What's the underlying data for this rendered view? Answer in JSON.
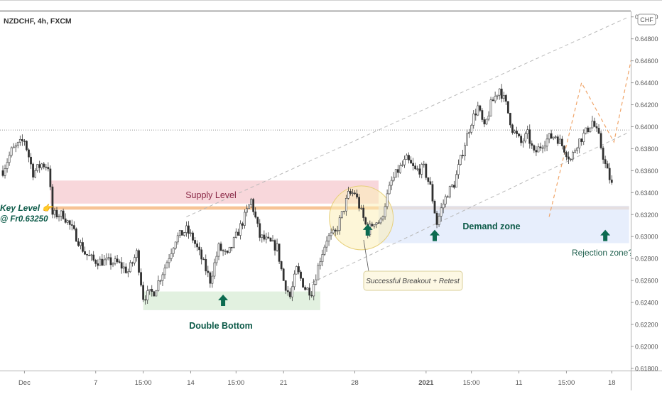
{
  "chart_data": {
    "type": "candlestick",
    "title": "NZDCHF, 4h, FXCM",
    "currency_badge": "CHF",
    "y_axis": {
      "ylim": [
        0.6178,
        0.6505
      ],
      "ticks": [
        "0.65000",
        "0.64800",
        "0.64600",
        "0.64400",
        "0.64200",
        "0.64000",
        "0.63800",
        "0.63600",
        "0.63400",
        "0.63200",
        "0.63000",
        "0.62800",
        "0.62600",
        "0.62400",
        "0.62200",
        "0.62000",
        "0.61800"
      ],
      "tick_values": [
        0.65,
        0.648,
        0.646,
        0.644,
        0.642,
        0.64,
        0.638,
        0.636,
        0.634,
        0.632,
        0.63,
        0.628,
        0.626,
        0.624,
        0.622,
        0.62,
        0.618
      ]
    },
    "x_axis": {
      "ticks": [
        "Dec",
        "7",
        "15:00",
        "14",
        "15:00",
        "21",
        "28",
        "2021",
        "15:00",
        "11",
        "15:00",
        "18"
      ],
      "tick_bars": [
        10,
        43,
        65,
        87,
        108,
        130,
        163,
        196,
        217,
        239,
        261,
        282
      ]
    },
    "reference_line": 0.6397,
    "zones": [
      {
        "name": "Supply Level",
        "from_bar": 22,
        "to_bar": 174,
        "low": 0.633,
        "high": 0.6351,
        "color": "#f6c9cf"
      },
      {
        "name": "Key Level",
        "from_bar": 22,
        "to_bar": 290,
        "low": 0.63245,
        "high": 0.63275,
        "color": "#f7c08f"
      },
      {
        "name": "Demand zone",
        "from_bar": 174,
        "to_bar": 290,
        "low": 0.6294,
        "high": 0.6328,
        "color": "#dfe8fb"
      },
      {
        "name": "Double Bottom",
        "from_bar": 65,
        "to_bar": 147,
        "low": 0.6233,
        "high": 0.625,
        "color": "#d8ecd6"
      }
    ],
    "labels": {
      "supply": "Supply Level",
      "key_level_line1": "Key Level 👉",
      "key_level_line2": "@ Fr0.63250",
      "demand": "Demand zone",
      "double_bottom": "Double Bottom",
      "breakout": "Successful Breakout + Retest",
      "rejection": "Rejection zone?"
    },
    "arrows": [
      {
        "bar": 102,
        "price": 0.6242
      },
      {
        "bar": 169,
        "price": 0.6306
      },
      {
        "bar": 200,
        "price": 0.6301
      },
      {
        "bar": 279,
        "price": 0.6301
      }
    ],
    "channel_lines": [
      {
        "from": [
          143,
          0.6258
        ],
        "to": [
          290,
          0.6395
        ]
      },
      {
        "from": [
          85,
          0.6318
        ],
        "to": [
          290,
          0.65
        ]
      }
    ],
    "projection": [
      [
        253,
        0.6318
      ],
      [
        268,
        0.644
      ],
      [
        283,
        0.6386
      ],
      [
        293,
        0.648
      ]
    ],
    "highlight_circle": {
      "bar": 166,
      "price": 0.6317
    },
    "anchors": [
      [
        0,
        0.636
      ],
      [
        4,
        0.6378
      ],
      [
        10,
        0.6388
      ],
      [
        14,
        0.6358
      ],
      [
        18,
        0.6366
      ],
      [
        21,
        0.6364
      ],
      [
        23,
        0.632
      ],
      [
        28,
        0.632
      ],
      [
        34,
        0.63
      ],
      [
        38,
        0.6285
      ],
      [
        42,
        0.6278
      ],
      [
        48,
        0.6277
      ],
      [
        53,
        0.6276
      ],
      [
        58,
        0.6268
      ],
      [
        62,
        0.6285
      ],
      [
        65,
        0.6245
      ],
      [
        70,
        0.625
      ],
      [
        75,
        0.6272
      ],
      [
        80,
        0.6298
      ],
      [
        85,
        0.6306
      ],
      [
        88,
        0.6298
      ],
      [
        92,
        0.628
      ],
      [
        96,
        0.626
      ],
      [
        100,
        0.629
      ],
      [
        104,
        0.6282
      ],
      [
        108,
        0.63
      ],
      [
        112,
        0.6318
      ],
      [
        115,
        0.6333
      ],
      [
        119,
        0.63
      ],
      [
        123,
        0.6295
      ],
      [
        127,
        0.629
      ],
      [
        130,
        0.626
      ],
      [
        133,
        0.6245
      ],
      [
        136,
        0.627
      ],
      [
        140,
        0.6253
      ],
      [
        143,
        0.625
      ],
      [
        147,
        0.628
      ],
      [
        150,
        0.6298
      ],
      [
        154,
        0.6303
      ],
      [
        157,
        0.632
      ],
      [
        160,
        0.6338
      ],
      [
        163,
        0.634
      ],
      [
        166,
        0.6322
      ],
      [
        169,
        0.6305
      ],
      [
        172,
        0.6314
      ],
      [
        175,
        0.6313
      ],
      [
        177,
        0.633
      ],
      [
        180,
        0.635
      ],
      [
        183,
        0.636
      ],
      [
        187,
        0.637
      ],
      [
        191,
        0.636
      ],
      [
        195,
        0.6362
      ],
      [
        198,
        0.6345
      ],
      [
        201,
        0.6312
      ],
      [
        203,
        0.6325
      ],
      [
        206,
        0.634
      ],
      [
        209,
        0.6348
      ],
      [
        212,
        0.637
      ],
      [
        214,
        0.6385
      ],
      [
        217,
        0.6405
      ],
      [
        220,
        0.6418
      ],
      [
        223,
        0.6398
      ],
      [
        226,
        0.642
      ],
      [
        230,
        0.6435
      ],
      [
        233,
        0.642
      ],
      [
        236,
        0.6398
      ],
      [
        240,
        0.6385
      ],
      [
        243,
        0.6393
      ],
      [
        246,
        0.6375
      ],
      [
        250,
        0.6385
      ],
      [
        253,
        0.639
      ],
      [
        256,
        0.6392
      ],
      [
        260,
        0.638
      ],
      [
        263,
        0.637
      ],
      [
        266,
        0.6385
      ],
      [
        270,
        0.6395
      ],
      [
        273,
        0.6405
      ],
      [
        276,
        0.639
      ],
      [
        279,
        0.6365
      ],
      [
        282,
        0.6347
      ]
    ]
  }
}
